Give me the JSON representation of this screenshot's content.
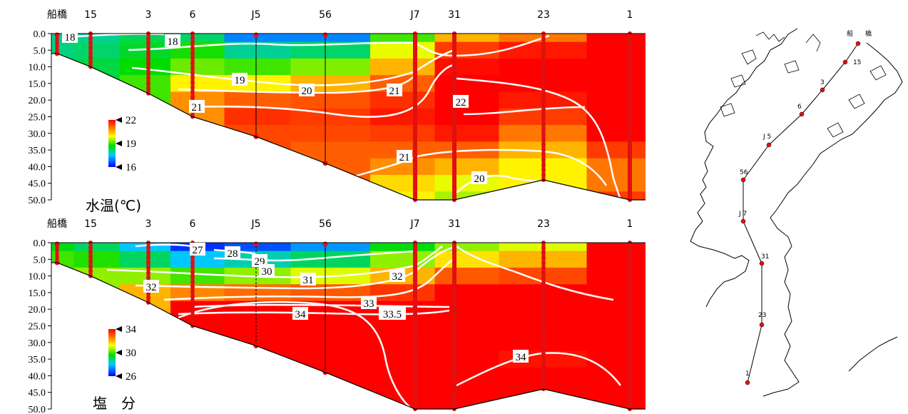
{
  "chart_data": [
    {
      "type": "heatmap",
      "title": "水温(℃)",
      "xlabel": "",
      "ylabel": "",
      "stations": [
        "船橋",
        "15",
        "3",
        "6",
        "J5",
        "56",
        "J7",
        "31",
        "23",
        "1"
      ],
      "y_ticks": [
        "0.0",
        "5.0",
        "10.0",
        "15.0",
        "20.0",
        "25.0",
        "30.0",
        "35.0",
        "40.0",
        "45.0",
        "50.0"
      ],
      "ylim": [
        0,
        50
      ],
      "station_depths": [
        6,
        10,
        18,
        25,
        31,
        39,
        50,
        50,
        44,
        50
      ],
      "colorbar": {
        "ticks": [
          "22",
          "19",
          "16"
        ],
        "range": [
          16,
          22
        ]
      },
      "contour_labels": [
        "18",
        "18",
        "19",
        "20",
        "21",
        "21",
        "22",
        "21",
        "20"
      ],
      "values": [
        [
          18.0,
          18.0,
          18.3,
          18.2,
          17.0,
          17.0,
          19.0,
          20.5,
          21.0,
          22.0
        ],
        [
          18.1,
          18.2,
          18.5,
          18.8,
          18.0,
          18.2,
          19.8,
          21.5,
          21.8,
          22.0
        ],
        [
          null,
          18.4,
          18.7,
          19.2,
          19.0,
          19.3,
          20.5,
          21.9,
          22.0,
          22.0
        ],
        [
          null,
          null,
          19.0,
          20.0,
          20.0,
          20.5,
          21.2,
          22.1,
          22.0,
          22.0
        ],
        [
          null,
          null,
          null,
          20.8,
          21.2,
          21.3,
          21.6,
          22.2,
          21.8,
          22.0
        ],
        [
          null,
          null,
          null,
          null,
          21.6,
          21.5,
          21.8,
          22.1,
          21.5,
          22.0
        ],
        [
          null,
          null,
          null,
          null,
          21.4,
          21.4,
          21.5,
          21.8,
          21.0,
          22.0
        ],
        [
          null,
          null,
          null,
          null,
          null,
          21.2,
          21.2,
          21.2,
          20.5,
          21.5
        ],
        [
          null,
          null,
          null,
          null,
          null,
          null,
          20.8,
          20.5,
          20.0,
          21.0
        ],
        [
          null,
          null,
          null,
          null,
          null,
          null,
          20.2,
          19.8,
          null,
          21.0
        ],
        [
          null,
          null,
          null,
          null,
          null,
          null,
          20.0,
          19.5,
          null,
          21.5
        ]
      ]
    },
    {
      "type": "heatmap",
      "title": "塩　分",
      "xlabel": "",
      "ylabel": "",
      "stations": [
        "船橋",
        "15",
        "3",
        "6",
        "J5",
        "56",
        "J7",
        "31",
        "23",
        "1"
      ],
      "y_ticks": [
        "0.0",
        "5.0",
        "10.0",
        "15.0",
        "20.0",
        "25.0",
        "30.0",
        "35.0",
        "40.0",
        "45.0",
        "50.0"
      ],
      "ylim": [
        0,
        50
      ],
      "station_depths": [
        6,
        10,
        18,
        25,
        31,
        39,
        50,
        50,
        44,
        50
      ],
      "colorbar": {
        "ticks": [
          "34",
          "30",
          "26"
        ],
        "range": [
          26,
          34
        ]
      },
      "contour_labels": [
        "27",
        "28",
        "29",
        "30",
        "31",
        "32",
        "32",
        "33",
        "33.5",
        "34",
        "34"
      ],
      "values": [
        [
          29.5,
          29.0,
          28.0,
          26.5,
          26.8,
          27.5,
          29.5,
          30.5,
          31.0,
          34.0
        ],
        [
          30.0,
          29.8,
          29.0,
          28.0,
          28.5,
          29.0,
          30.5,
          31.5,
          32.0,
          34.0
        ],
        [
          null,
          30.5,
          30.5,
          30.0,
          30.5,
          31.0,
          32.0,
          33.0,
          33.2,
          34.0
        ],
        [
          null,
          null,
          32.0,
          32.5,
          32.8,
          33.0,
          33.4,
          34.0,
          34.0,
          34.0
        ],
        [
          null,
          null,
          null,
          34.0,
          34.0,
          34.0,
          34.0,
          34.0,
          34.0,
          34.0
        ],
        [
          null,
          null,
          null,
          null,
          34.0,
          34.0,
          34.0,
          34.0,
          34.0,
          34.0
        ],
        [
          null,
          null,
          null,
          null,
          34.0,
          34.0,
          34.0,
          34.0,
          34.0,
          34.0
        ],
        [
          null,
          null,
          null,
          null,
          null,
          34.0,
          34.0,
          34.0,
          33.8,
          34.0
        ],
        [
          null,
          null,
          null,
          null,
          null,
          null,
          34.0,
          34.0,
          34.0,
          34.0
        ],
        [
          null,
          null,
          null,
          null,
          null,
          null,
          34.0,
          34.0,
          null,
          34.0
        ],
        [
          null,
          null,
          null,
          null,
          null,
          null,
          34.0,
          34.0,
          null,
          34.0
        ]
      ]
    }
  ],
  "map": {
    "labels": [
      "船",
      "橋",
      "15",
      "3",
      "6",
      "J 5",
      "56",
      "J 7",
      "31",
      "23",
      "1"
    ]
  },
  "colors": {
    "station_dot": "#e01010",
    "contour": "#ffffff"
  }
}
